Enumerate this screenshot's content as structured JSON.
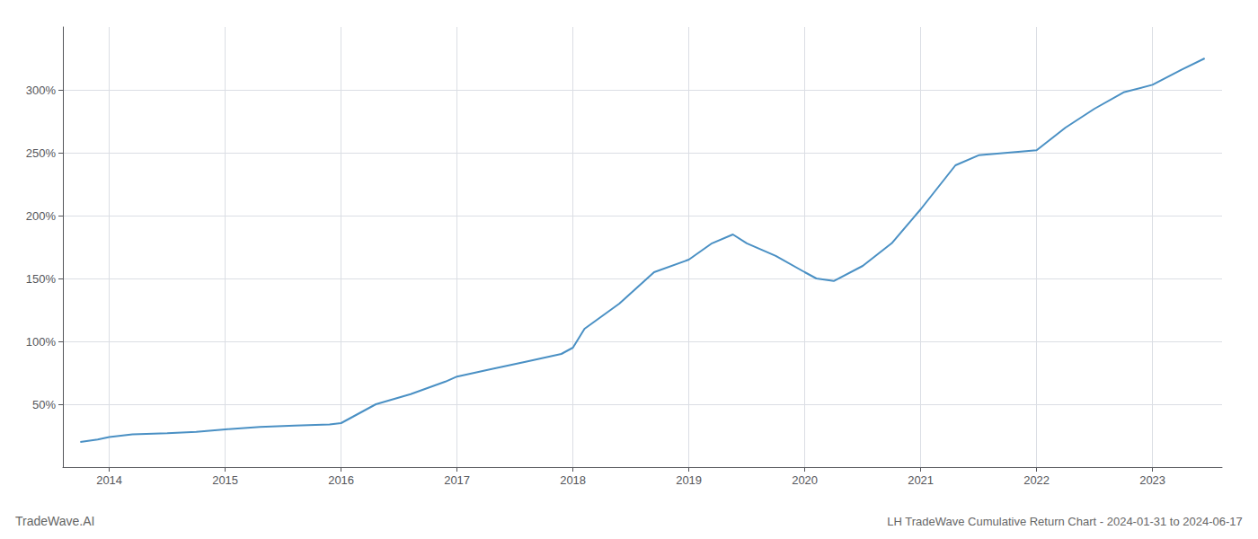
{
  "chart_data": {
    "type": "line",
    "title": "LH TradeWave Cumulative Return Chart - 2024-01-31 to 2024-06-17",
    "annotations": [
      "TradeWave.AI"
    ],
    "color": "#4a90c4",
    "x": [
      2013.75,
      2013.9,
      2014.0,
      2014.2,
      2014.5,
      2014.75,
      2015.0,
      2015.3,
      2015.6,
      2015.9,
      2016.0,
      2016.3,
      2016.6,
      2016.9,
      2017.0,
      2017.3,
      2017.6,
      2017.9,
      2018.0,
      2018.1,
      2018.4,
      2018.7,
      2019.0,
      2019.2,
      2019.38,
      2019.5,
      2019.75,
      2020.0,
      2020.1,
      2020.25,
      2020.5,
      2020.75,
      2021.0,
      2021.3,
      2021.5,
      2021.75,
      2022.0,
      2022.25,
      2022.5,
      2022.75,
      2023.0,
      2023.25,
      2023.45
    ],
    "values": [
      20,
      22,
      24,
      26,
      27,
      28,
      30,
      32,
      33,
      34,
      35,
      50,
      58,
      68,
      72,
      78,
      84,
      90,
      95,
      110,
      130,
      155,
      165,
      178,
      185,
      178,
      168,
      155,
      150,
      148,
      160,
      178,
      205,
      240,
      248,
      250,
      252,
      270,
      285,
      298,
      304,
      316,
      325
    ],
    "xlim": [
      2013.6,
      2023.6
    ],
    "ylim": [
      0,
      350
    ],
    "xticks": [
      2014,
      2015,
      2016,
      2017,
      2018,
      2019,
      2020,
      2021,
      2022,
      2023
    ],
    "yticks": [
      {
        "value": 50,
        "label": "50%"
      },
      {
        "value": 100,
        "label": "100%"
      },
      {
        "value": 150,
        "label": "150%"
      },
      {
        "value": 200,
        "label": "200%"
      },
      {
        "value": 250,
        "label": "250%"
      },
      {
        "value": 300,
        "label": "300%"
      }
    ],
    "grid": true
  }
}
